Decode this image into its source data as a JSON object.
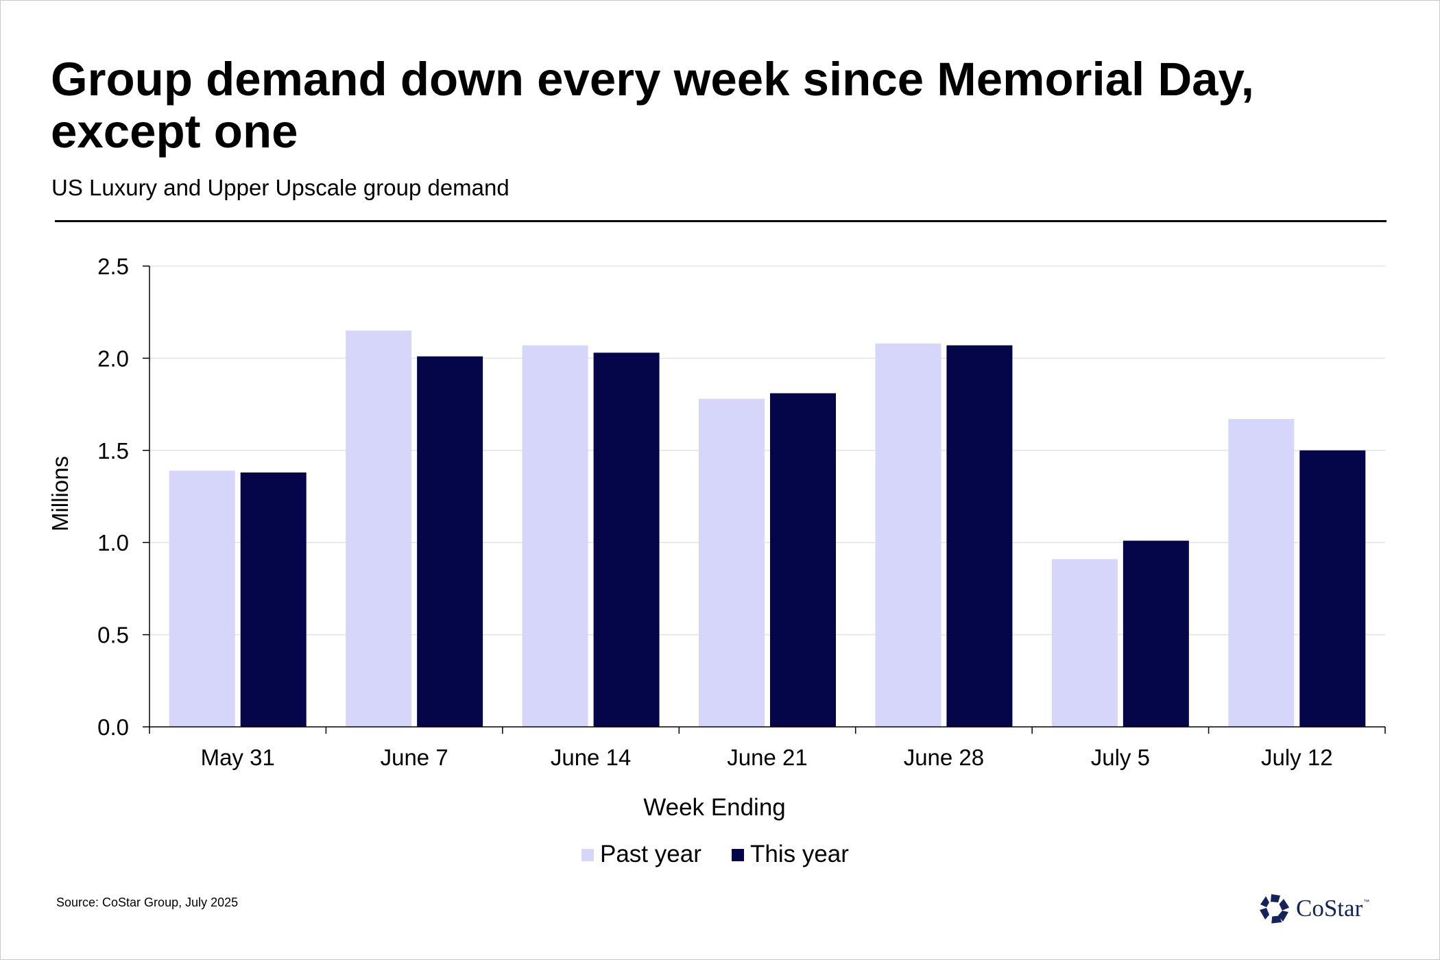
{
  "header": {
    "title": "Group demand down every week since Memorial Day, except one",
    "subtitle": "US Luxury and Upper Upscale group demand"
  },
  "footer": {
    "source": "Source: CoStar Group, July 2025",
    "logo_text": "CoStar",
    "logo_tm": "™",
    "logo_icon": "costar-star-icon"
  },
  "colors": {
    "past_year": "#d6d6fa",
    "this_year": "#05054a",
    "grid": "#e3e3e3",
    "axis": "#000000"
  },
  "chart_data": {
    "type": "bar",
    "categories": [
      "May 31",
      "June 7",
      "June 14",
      "June 21",
      "June 28",
      "July 5",
      "July 12"
    ],
    "series": [
      {
        "name": "Past year",
        "values": [
          1.39,
          2.15,
          2.07,
          1.78,
          2.08,
          0.91,
          1.67
        ]
      },
      {
        "name": "This year",
        "values": [
          1.38,
          2.01,
          2.03,
          1.81,
          2.07,
          1.01,
          1.5
        ]
      }
    ],
    "ylim": [
      0,
      2.5
    ],
    "yticks": [
      "0.0",
      "0.5",
      "1.0",
      "1.5",
      "2.0",
      "2.5"
    ],
    "xlabel": "Week Ending",
    "ylabel": "Millions",
    "grid": true,
    "legend_position": "bottom-center"
  }
}
